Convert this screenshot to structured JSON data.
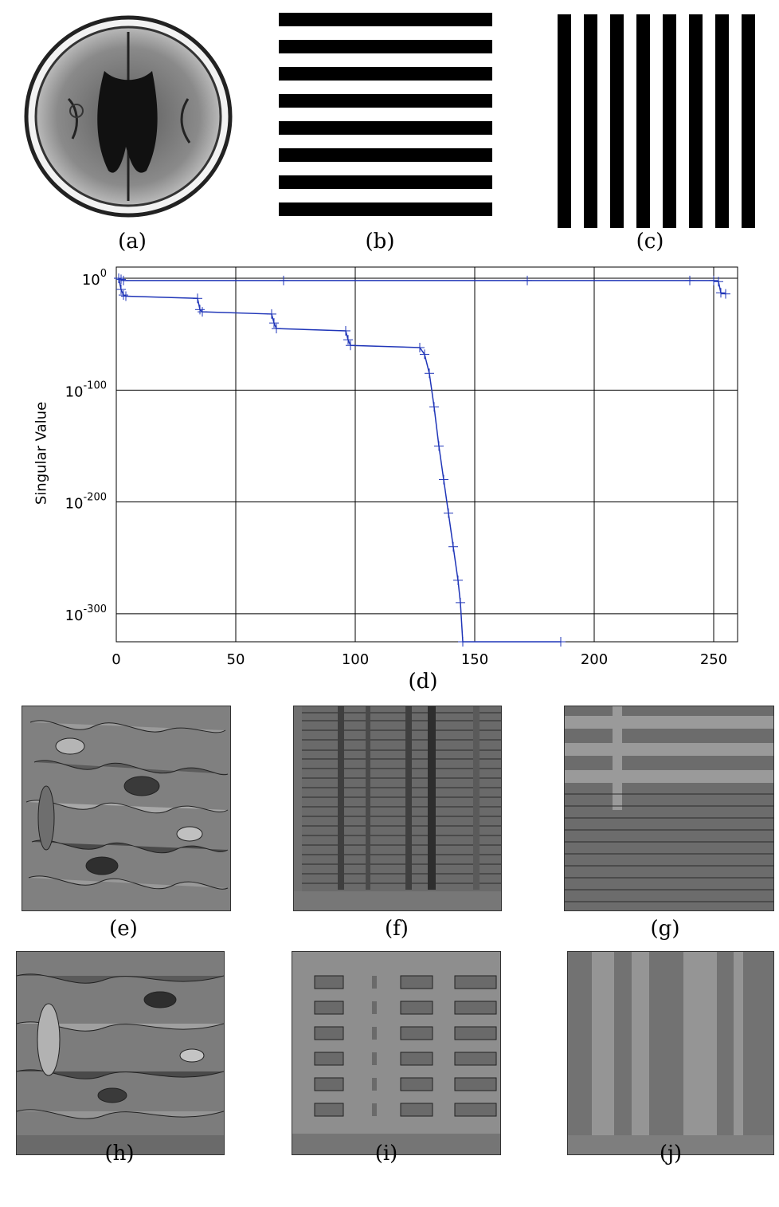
{
  "figure": {
    "captions": {
      "a": "(a)",
      "b": "(b)",
      "c": "(c)",
      "d": "(d)",
      "e": "(e)",
      "f": "(f)",
      "g": "(g)",
      "h": "(h)",
      "i": "(i)",
      "j": "(j)"
    }
  },
  "chart_data": {
    "type": "line",
    "title": "",
    "xlabel": "",
    "ylabel": "Singular Value",
    "y_scale": "log10",
    "xlim": [
      0,
      260
    ],
    "ylim_exponent": [
      -325,
      10
    ],
    "x_ticks": [
      "0",
      "50",
      "100",
      "150",
      "200",
      "250"
    ],
    "y_ticks": [
      {
        "base": "10",
        "exp": "0"
      },
      {
        "base": "10",
        "exp": "-100"
      },
      {
        "base": "10",
        "exp": "-200"
      },
      {
        "base": "10",
        "exp": "-300"
      }
    ],
    "grid": true,
    "series": [
      {
        "x": [
          1,
          2,
          3,
          70,
          172,
          240,
          250,
          252,
          253,
          255
        ],
        "log10_y": [
          0,
          -1,
          -2,
          -2,
          -2,
          -2,
          -2,
          -3,
          -13,
          -14
        ]
      },
      {
        "x": [
          1,
          2,
          3,
          4,
          34,
          35,
          36,
          65,
          66,
          67,
          96,
          97,
          98,
          127,
          129,
          131,
          133,
          135,
          137,
          139,
          141,
          143,
          144,
          145,
          186
        ],
        "log10_y": [
          0,
          -10,
          -15,
          -16,
          -18,
          -28,
          -30,
          -32,
          -40,
          -45,
          -47,
          -55,
          -60,
          -62,
          -68,
          -85,
          -115,
          -150,
          -180,
          -210,
          -240,
          -270,
          -290,
          -325,
          -325
        ]
      }
    ],
    "series_color": "#1f35b8"
  }
}
